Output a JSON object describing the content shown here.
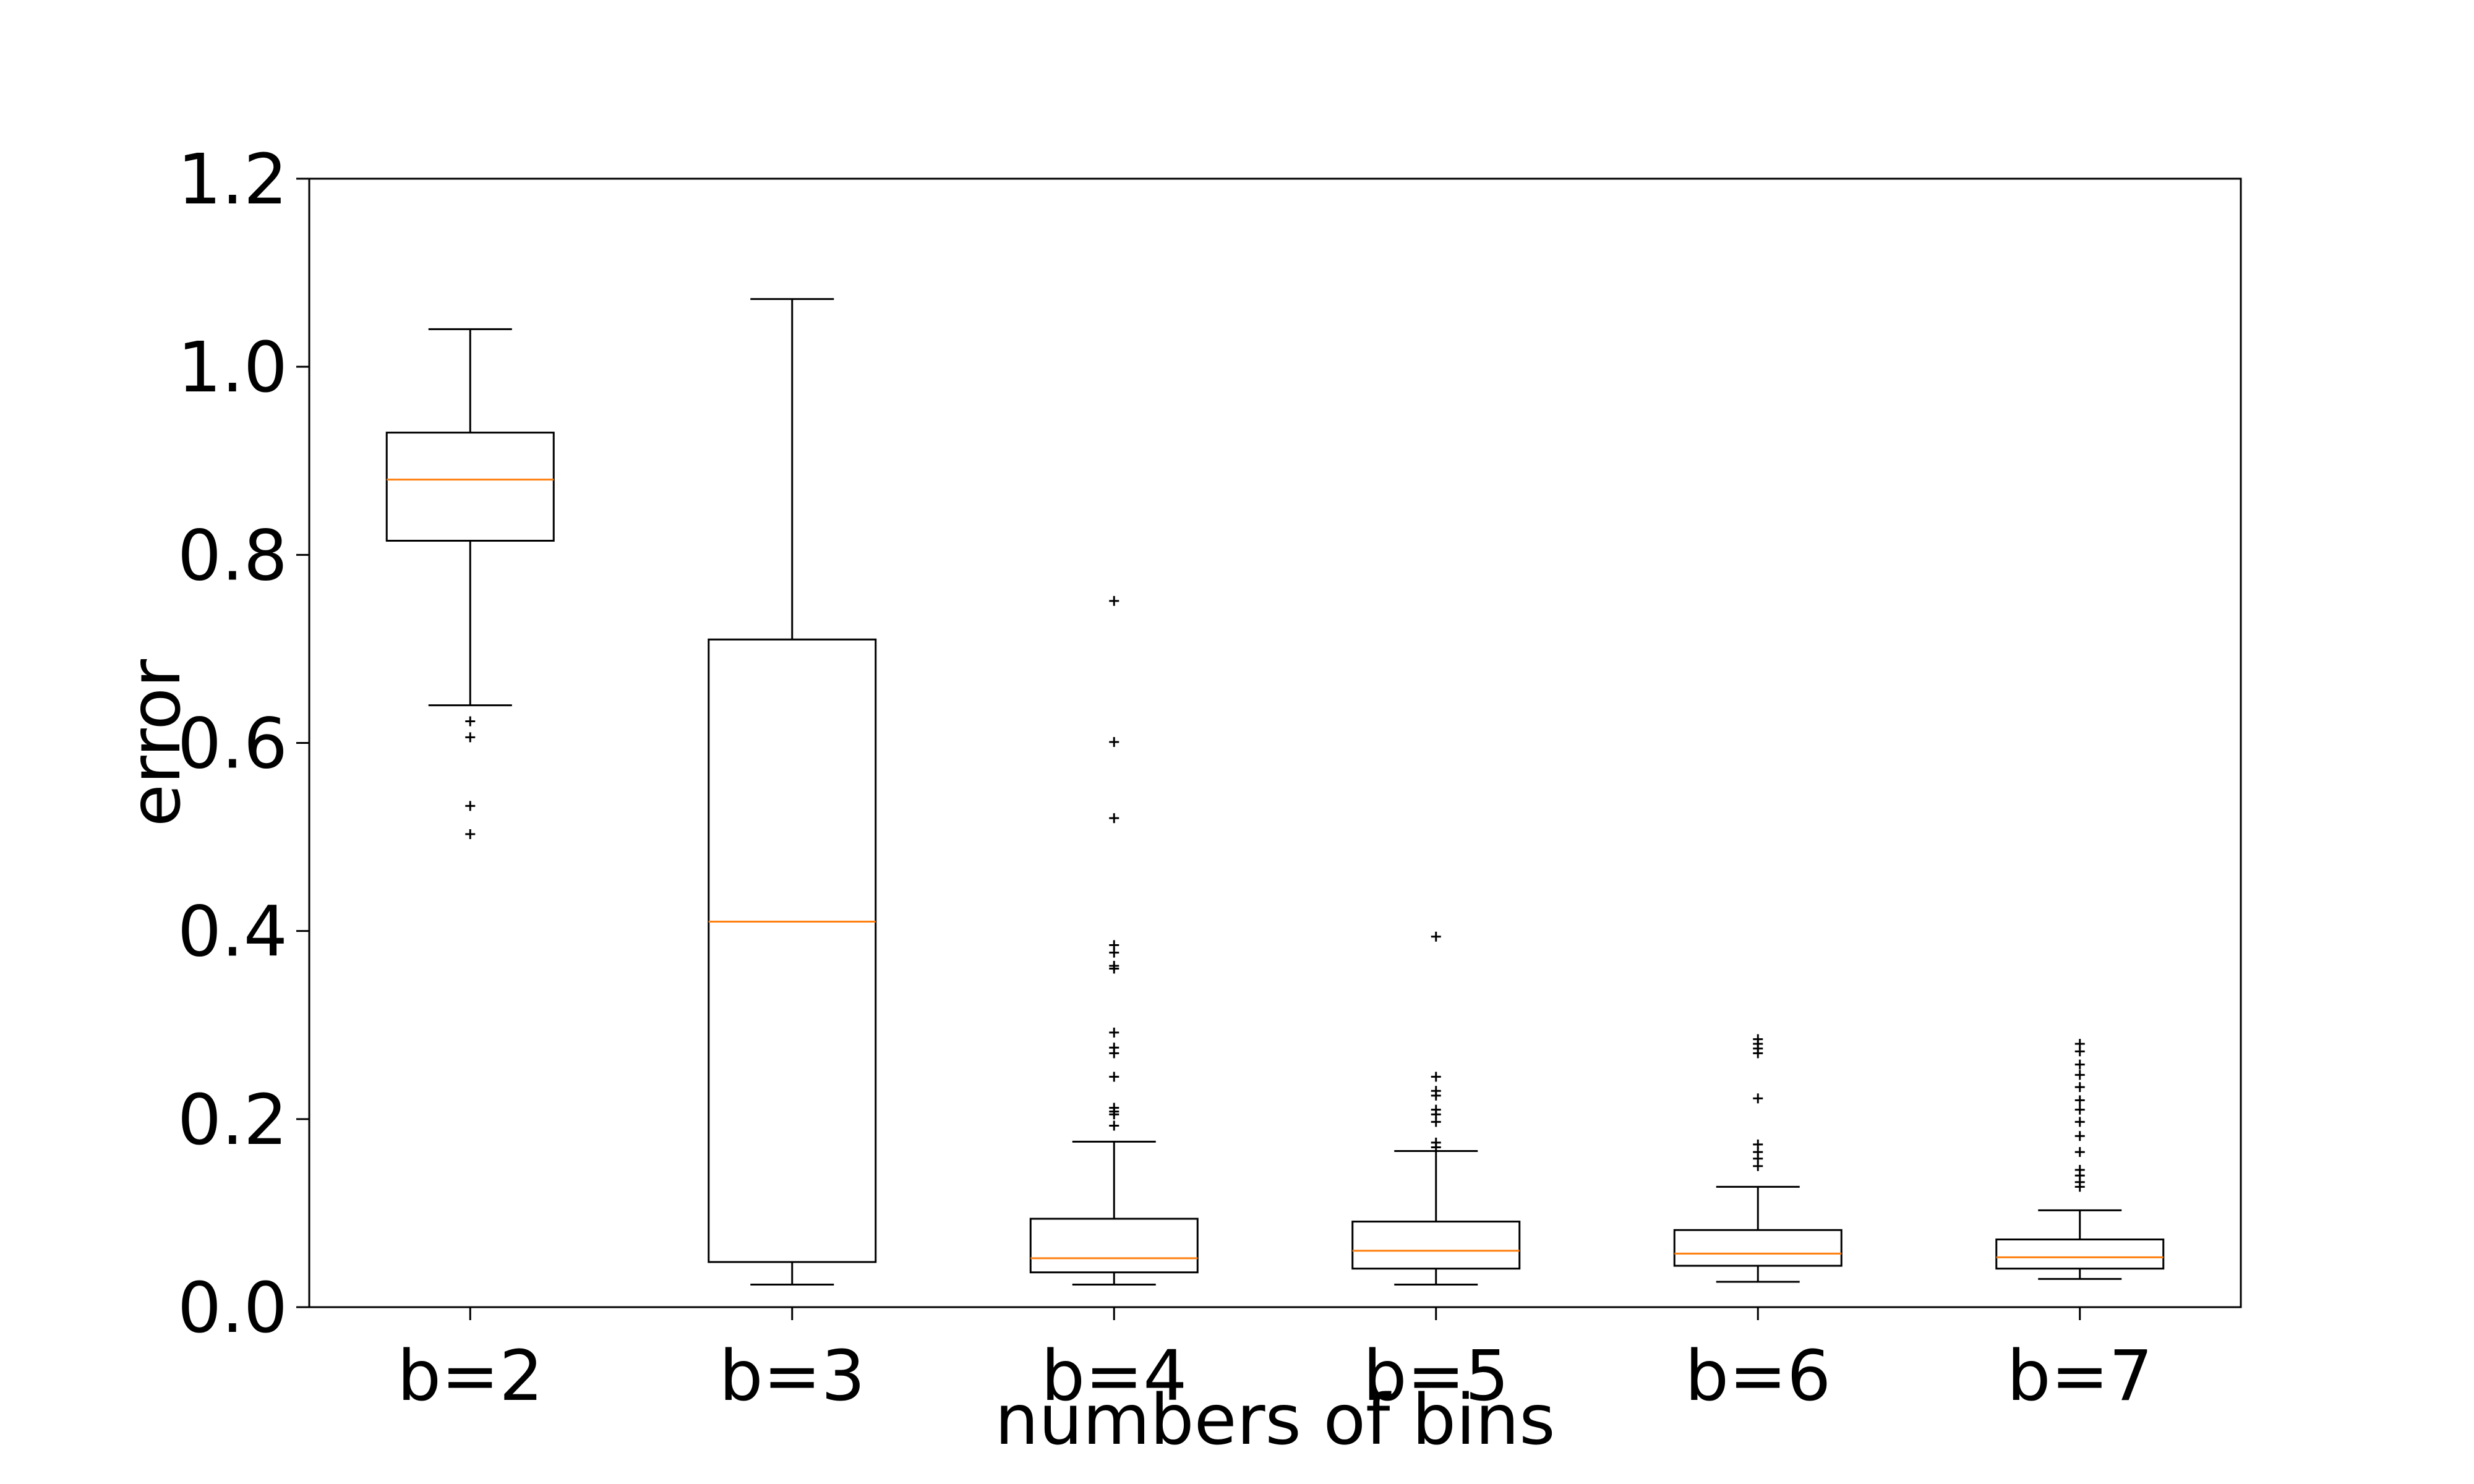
{
  "chart_data": {
    "type": "box",
    "title": "",
    "xlabel": "numbers of bins",
    "ylabel": "error",
    "ylim": [
      0.0,
      1.2
    ],
    "yticks": [
      "0.0",
      "0.2",
      "0.4",
      "0.6",
      "0.8",
      "1.0",
      "1.2"
    ],
    "categories": [
      "b=2",
      "b=3",
      "b=4",
      "b=5",
      "b=6",
      "b=7"
    ],
    "boxes": [
      {
        "whisker_low": 0.64,
        "q1": 0.815,
        "median": 0.88,
        "q3": 0.93,
        "whisker_high": 1.04,
        "outliers": [
          0.623,
          0.606,
          0.533,
          0.503
        ]
      },
      {
        "whisker_low": 0.024,
        "q1": 0.048,
        "median": 0.41,
        "q3": 0.71,
        "whisker_high": 1.072,
        "outliers": []
      },
      {
        "whisker_low": 0.024,
        "q1": 0.037,
        "median": 0.052,
        "q3": 0.094,
        "whisker_high": 0.176,
        "outliers": [
          0.751,
          0.601,
          0.52,
          0.385,
          0.377,
          0.363,
          0.36,
          0.292,
          0.276,
          0.27,
          0.245,
          0.212,
          0.208,
          0.205,
          0.193
        ]
      },
      {
        "whisker_low": 0.024,
        "q1": 0.041,
        "median": 0.06,
        "q3": 0.091,
        "whisker_high": 0.166,
        "outliers": [
          0.394,
          0.245,
          0.23,
          0.225,
          0.21,
          0.205,
          0.197,
          0.175,
          0.17
        ]
      },
      {
        "whisker_low": 0.027,
        "q1": 0.044,
        "median": 0.057,
        "q3": 0.082,
        "whisker_high": 0.128,
        "outliers": [
          0.285,
          0.28,
          0.275,
          0.27,
          0.222,
          0.173,
          0.165,
          0.158,
          0.15
        ]
      },
      {
        "whisker_low": 0.03,
        "q1": 0.041,
        "median": 0.053,
        "q3": 0.072,
        "whisker_high": 0.103,
        "outliers": [
          0.28,
          0.272,
          0.258,
          0.247,
          0.234,
          0.22,
          0.21,
          0.197,
          0.182,
          0.165,
          0.146,
          0.14,
          0.133,
          0.128
        ]
      }
    ],
    "colors": {
      "median": "#ff7f0e",
      "box": "#000000",
      "outlier": "#000000"
    },
    "grid": false,
    "legend": "none"
  }
}
